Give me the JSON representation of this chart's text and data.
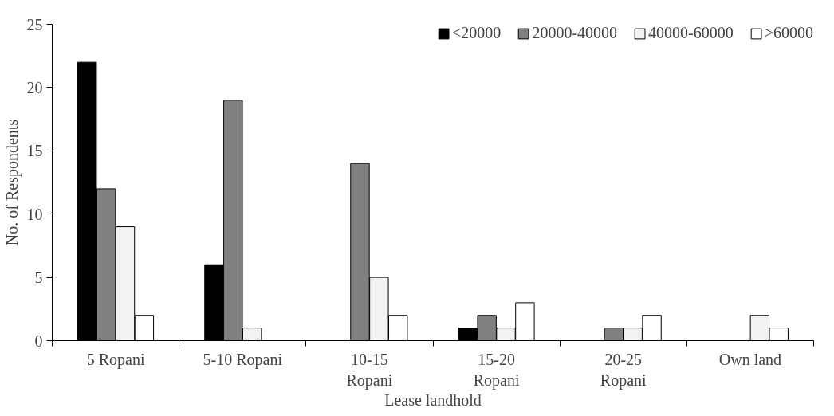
{
  "chart_data": {
    "type": "bar",
    "xlabel": "Lease landhold",
    "ylabel": "No. of Respondents",
    "categories": [
      "5 Ropani",
      "5-10 Ropani",
      "10-15 Ropani",
      "15-20 Ropani",
      "20-25 Ropani",
      "Own land"
    ],
    "series": [
      {
        "name": "<20000",
        "color": "#000000",
        "values": [
          22,
          6,
          null,
          1,
          null,
          null
        ]
      },
      {
        "name": "20000-40000",
        "color": "#808080",
        "values": [
          12,
          19,
          14,
          2,
          1,
          null
        ]
      },
      {
        "name": "40000-60000",
        "color": "#f2f2f2",
        "values": [
          9,
          1,
          5,
          1,
          1,
          2
        ]
      },
      {
        "name": ">60000",
        "color": "#ffffff",
        "values": [
          2,
          null,
          2,
          3,
          2,
          1
        ]
      }
    ],
    "ylim": [
      0,
      25
    ],
    "yticks": [
      0,
      5,
      10,
      15,
      20,
      25
    ],
    "grid": false,
    "legend": "top right"
  }
}
